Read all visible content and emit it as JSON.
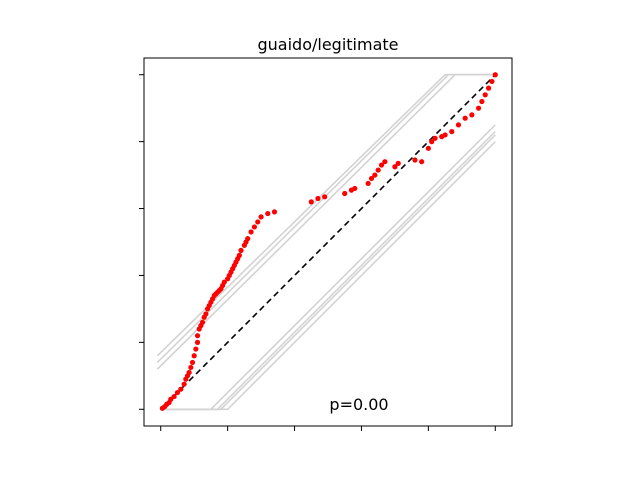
{
  "chart_data": {
    "type": "scatter",
    "title": "guaido/legitimate",
    "annotation": "p=0.00",
    "xlabel": "",
    "ylabel": "",
    "xlim": [
      -0.05,
      1.05
    ],
    "ylim": [
      -0.05,
      1.05
    ],
    "grid": false,
    "tick_labels_visible": false,
    "x_ticks": [
      0,
      0.2,
      0.4,
      0.6,
      0.8,
      1.0
    ],
    "y_ticks": [
      0,
      0.2,
      0.4,
      0.6,
      0.8,
      1.0
    ],
    "colors": {
      "points": "#ff0000",
      "reference_line": "#000000",
      "envelope": "#d3d3d3",
      "axes": "#000000"
    },
    "reference_line": {
      "x": [
        0,
        1
      ],
      "y": [
        0,
        1
      ],
      "style": "dashed"
    },
    "envelope_lines": [
      {
        "x": [
          -0.01,
          0.85,
          1.0
        ],
        "y": [
          0.16,
          1.0,
          1.0
        ]
      },
      {
        "x": [
          -0.01,
          0.86,
          1.0
        ],
        "y": [
          0.14,
          1.0,
          1.0
        ]
      },
      {
        "x": [
          -0.01,
          0.88,
          1.0
        ],
        "y": [
          0.12,
          1.0,
          1.0
        ]
      },
      {
        "x": [
          0.0,
          0.15,
          1.0
        ],
        "y": [
          0.0,
          0.0,
          0.85
        ]
      },
      {
        "x": [
          0.0,
          0.17,
          1.0
        ],
        "y": [
          0.0,
          0.0,
          0.83
        ]
      },
      {
        "x": [
          0.0,
          0.18,
          1.0
        ],
        "y": [
          0.0,
          0.0,
          0.82
        ]
      },
      {
        "x": [
          0.0,
          0.2,
          1.0
        ],
        "y": [
          0.0,
          0.0,
          0.8
        ]
      }
    ],
    "series": [
      {
        "points": [
          [
            0.005,
            0.003
          ],
          [
            0.012,
            0.008
          ],
          [
            0.018,
            0.015
          ],
          [
            0.025,
            0.02
          ],
          [
            0.03,
            0.03
          ],
          [
            0.04,
            0.038
          ],
          [
            0.05,
            0.05
          ],
          [
            0.06,
            0.06
          ],
          [
            0.07,
            0.075
          ],
          [
            0.075,
            0.09
          ],
          [
            0.08,
            0.1
          ],
          [
            0.085,
            0.11
          ],
          [
            0.09,
            0.125
          ],
          [
            0.095,
            0.14
          ],
          [
            0.1,
            0.16
          ],
          [
            0.105,
            0.18
          ],
          [
            0.11,
            0.2
          ],
          [
            0.11,
            0.22
          ],
          [
            0.115,
            0.24
          ],
          [
            0.12,
            0.25
          ],
          [
            0.125,
            0.26
          ],
          [
            0.13,
            0.275
          ],
          [
            0.135,
            0.285
          ],
          [
            0.14,
            0.3
          ],
          [
            0.145,
            0.31
          ],
          [
            0.15,
            0.32
          ],
          [
            0.155,
            0.33
          ],
          [
            0.16,
            0.34
          ],
          [
            0.165,
            0.345
          ],
          [
            0.17,
            0.35
          ],
          [
            0.175,
            0.355
          ],
          [
            0.18,
            0.36
          ],
          [
            0.185,
            0.37
          ],
          [
            0.19,
            0.38
          ],
          [
            0.2,
            0.39
          ],
          [
            0.205,
            0.4
          ],
          [
            0.21,
            0.41
          ],
          [
            0.215,
            0.42
          ],
          [
            0.22,
            0.43
          ],
          [
            0.225,
            0.44
          ],
          [
            0.23,
            0.45
          ],
          [
            0.235,
            0.46
          ],
          [
            0.24,
            0.475
          ],
          [
            0.25,
            0.49
          ],
          [
            0.255,
            0.5
          ],
          [
            0.26,
            0.51
          ],
          [
            0.27,
            0.53
          ],
          [
            0.28,
            0.545
          ],
          [
            0.29,
            0.56
          ],
          [
            0.3,
            0.575
          ],
          [
            0.32,
            0.585
          ],
          [
            0.34,
            0.59
          ],
          [
            0.45,
            0.62
          ],
          [
            0.47,
            0.63
          ],
          [
            0.49,
            0.635
          ],
          [
            0.55,
            0.645
          ],
          [
            0.57,
            0.655
          ],
          [
            0.58,
            0.66
          ],
          [
            0.62,
            0.675
          ],
          [
            0.63,
            0.69
          ],
          [
            0.64,
            0.7
          ],
          [
            0.65,
            0.715
          ],
          [
            0.66,
            0.73
          ],
          [
            0.67,
            0.74
          ],
          [
            0.7,
            0.725
          ],
          [
            0.71,
            0.735
          ],
          [
            0.76,
            0.745
          ],
          [
            0.78,
            0.74
          ],
          [
            0.8,
            0.78
          ],
          [
            0.81,
            0.8
          ],
          [
            0.82,
            0.81
          ],
          [
            0.84,
            0.815
          ],
          [
            0.85,
            0.82
          ],
          [
            0.87,
            0.83
          ],
          [
            0.89,
            0.85
          ],
          [
            0.91,
            0.87
          ],
          [
            0.93,
            0.88
          ],
          [
            0.95,
            0.9
          ],
          [
            0.96,
            0.92
          ],
          [
            0.97,
            0.94
          ],
          [
            0.98,
            0.96
          ],
          [
            0.99,
            0.98
          ],
          [
            1.0,
            1.0
          ]
        ]
      }
    ]
  }
}
